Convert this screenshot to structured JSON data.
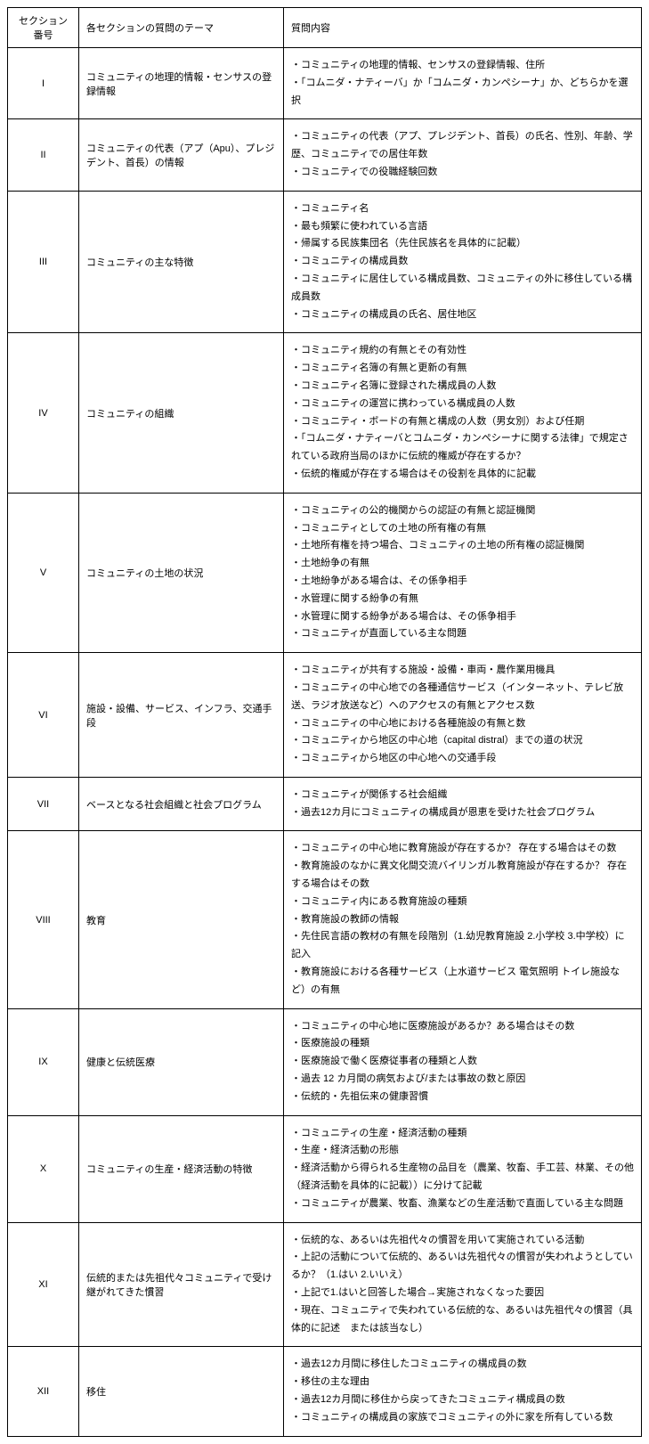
{
  "headers": {
    "section": "セクション番号",
    "theme": "各セクションの質問のテーマ",
    "content": "質問内容"
  },
  "rows": [
    {
      "section": "I",
      "theme": "コミュニティの地理的情報・センサスの登録情報",
      "items": [
        "コミュニティの地理的情報、センサスの登録情報、住所",
        "「コムニダ・ナティーバ」か「コムニダ・カンペシーナ」か、どちらかを選択"
      ]
    },
    {
      "section": "II",
      "theme": "コミュニティの代表（アプ（Apu）、プレジデント、首長）の情報",
      "items": [
        "コミュニティの代表（アプ、プレジデント、首長）の氏名、性別、年齢、学歴、コミュニティでの居住年数",
        "コミュニティでの役職経験回数"
      ]
    },
    {
      "section": "III",
      "theme": "コミュニティの主な特徴",
      "items": [
        "コミュニティ名",
        "最も頻繁に使われている言語",
        "帰属する民族集団名（先住民族名を具体的に記載）",
        "コミュニティの構成員数",
        "コミュニティに居住している構成員数、コミュニティの外に移住している構成員数",
        "コミュニティの構成員の氏名、居住地区"
      ]
    },
    {
      "section": "IV",
      "theme": "コミュニティの組織",
      "items": [
        "コミュニティ規約の有無とその有効性",
        "コミュニティ名簿の有無と更新の有無",
        "コミュニティ名簿に登録された構成員の人数",
        "コミュニティの運営に携わっている構成員の人数",
        "コミュニティ・ボードの有無と構成の人数（男女別）および任期",
        "「コムニダ・ナティーバとコムニダ・カンペシーナに関する法律」で規定されている政府当局のほかに伝統的権威が存在するか？",
        "伝統的権威が存在する場合はその役割を具体的に記載"
      ]
    },
    {
      "section": "V",
      "theme": "コミュニティの土地の状況",
      "items": [
        "コミュニティの公的機関からの認証の有無と認証機関",
        "コミュニティとしての土地の所有権の有無",
        "土地所有権を持つ場合、コミュニティの土地の所有権の認証機関",
        "土地紛争の有無",
        "土地紛争がある場合は、その係争相手",
        "水管理に関する紛争の有無",
        "水管理に関する紛争がある場合は、その係争相手",
        "コミュニティが直面している主な問題"
      ]
    },
    {
      "section": "VI",
      "theme": "施設・設備、サービス、インフラ、交通手段",
      "items": [
        "コミュニティが共有する施設・設備・車両・農作業用機具",
        "コミュニティの中心地での各種通信サービス（インターネット、テレビ放送、ラジオ放送など）へのアクセスの有無とアクセス数",
        "コミュニティの中心地における各種施設の有無と数",
        "コミュニティから地区の中心地（capital distral）までの道の状況",
        "コミュニティから地区の中心地への交通手段"
      ]
    },
    {
      "section": "VII",
      "theme": "ベースとなる社会組織と社会プログラム",
      "items": [
        "コミュニティが関係する社会組織",
        "過去12カ月にコミュニティの構成員が恩恵を受けた社会プログラム"
      ]
    },
    {
      "section": "VIII",
      "theme": "教育",
      "items": [
        "コミュニティの中心地に教育施設が存在するか？ 存在する場合はその数",
        "教育施設のなかに異文化間交流バイリンガル教育施設が存在するか？ 存在する場合はその数",
        "コミュニティ内にある教育施設の種類",
        "教育施設の教師の情報",
        "先住民言語の教材の有無を段階別（1.幼児教育施設 2.小学校 3.中学校）に記入",
        "教育施設における各種サービス（上水道サービス 電気照明 トイレ施設など）の有無"
      ]
    },
    {
      "section": "IX",
      "theme": "健康と伝統医療",
      "items": [
        "コミュニティの中心地に医療施設があるか？ある場合はその数",
        "医療施設の種類",
        "医療施設で働く医療従事者の種類と人数",
        "過去 12 カ月間の病気および/または事故の数と原因",
        "伝統的・先祖伝来の健康習慣"
      ]
    },
    {
      "section": "X",
      "theme": "コミュニティの生産・経済活動の特徴",
      "items": [
        "コミュニティの生産・経済活動の種類",
        "生産・経済活動の形態",
        "経済活動から得られる生産物の品目を（農業、牧畜、手工芸、林業、その他（経済活動を具体的に記載））に分けて記載",
        "コミュニティが農業、牧畜、漁業などの生産活動で直面している主な問題"
      ]
    },
    {
      "section": "XI",
      "theme": "伝統的または先祖代々コミュニティで受け継がれてきた慣習",
      "items": [
        "伝統的な、あるいは先祖代々の慣習を用いて実施されている活動",
        "上記の活動について伝統的、あるいは先祖代々の慣習が失われようとしているか？（1.はい 2.いいえ）",
        "上記で1.はいと回答した場合→実施されなくなった要因",
        "現在、コミュニティで失われている伝統的な、あるいは先祖代々の慣習（具体的に記述　または該当なし）"
      ]
    },
    {
      "section": "XII",
      "theme": "移住",
      "items": [
        "過去12カ月間に移住したコミュニティの構成員の数",
        "移住の主な理由",
        "過去12カ月間に移住から戻ってきたコミュニティ構成員の数",
        "コミュニティの構成員の家族でコミュニティの外に家を所有している数"
      ]
    }
  ]
}
